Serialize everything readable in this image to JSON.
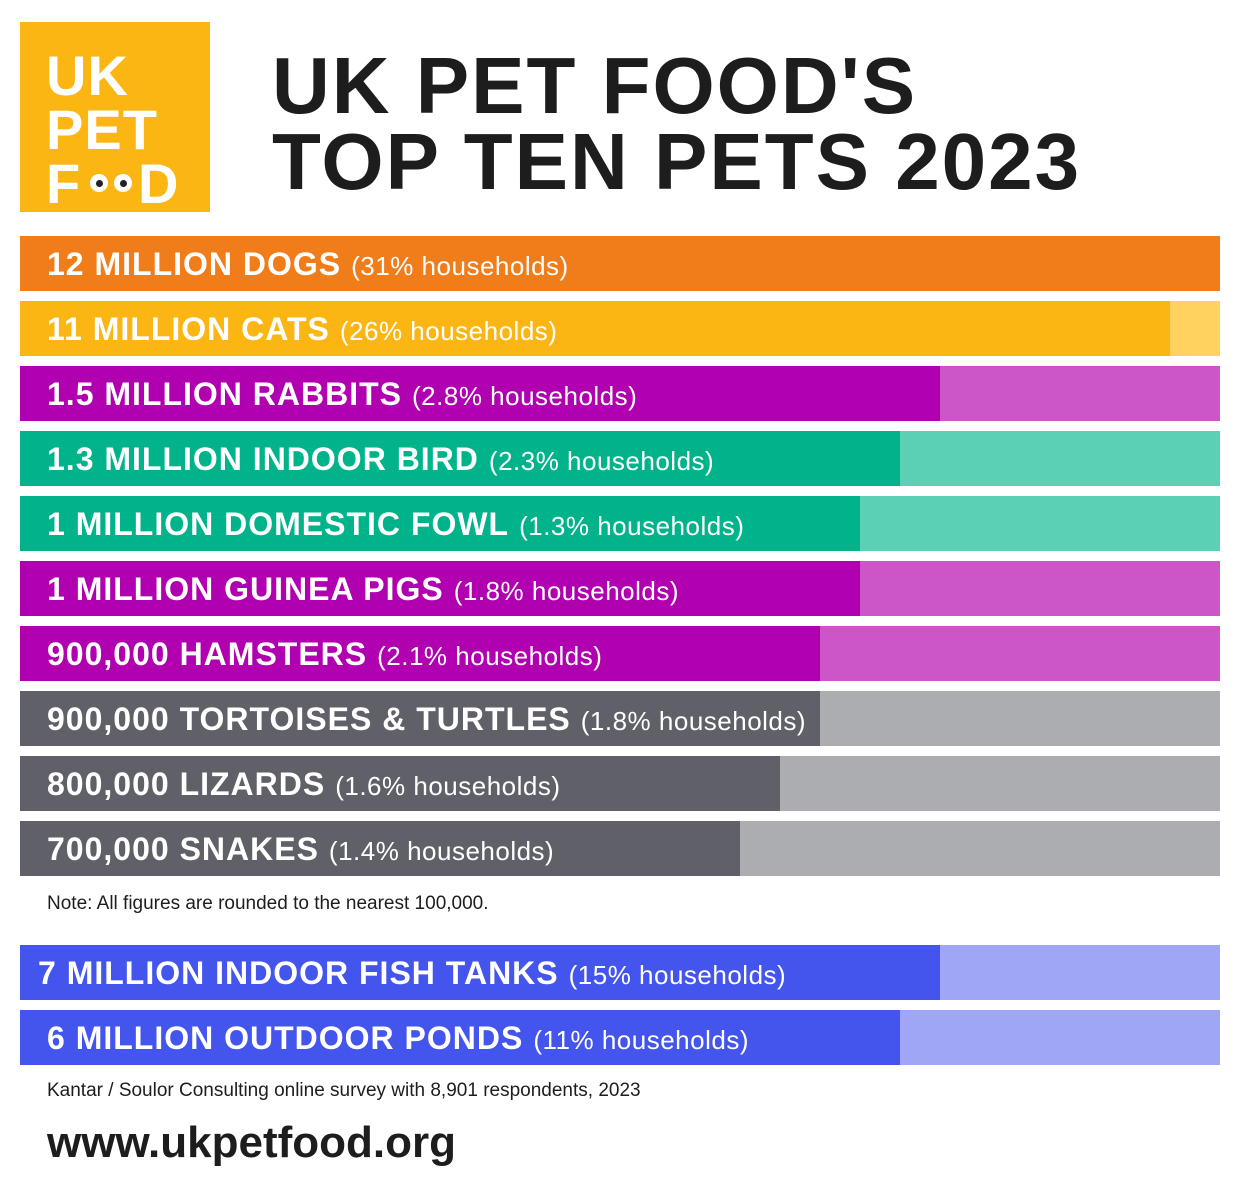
{
  "logo": {
    "line1": "UK",
    "line2": "PET",
    "line3_start": "F",
    "line3_end": "D"
  },
  "title": {
    "line1": "UK PET FOOD'S",
    "line2": "TOP TEN PETS 2023"
  },
  "rows": [
    {
      "label": "12 MILLION DOGS",
      "households": "(31% households)"
    },
    {
      "label": "11 MILLION CATS",
      "households": "(26% households)"
    },
    {
      "label": "1.5 MILLION RABBITS",
      "households": "(2.8% households)"
    },
    {
      "label": "1.3 MILLION INDOOR BIRD",
      "households": "(2.3% households)"
    },
    {
      "label": "1 MILLION DOMESTIC FOWL",
      "households": "(1.3% households)"
    },
    {
      "label": "1 MILLION GUINEA PIGS",
      "households": "(1.8% households)"
    },
    {
      "label": "900,000 HAMSTERS",
      "households": "(2.1% households)"
    },
    {
      "label": "900,000 TORTOISES & TURTLES",
      "households": "(1.8% households)"
    },
    {
      "label": "800,000 LIZARDS",
      "households": "(1.6% households)"
    },
    {
      "label": "700,000 SNAKES",
      "households": "(1.4% households)"
    }
  ],
  "note": "Note: All figures are rounded to the nearest 100,000.",
  "aquatic_rows": [
    {
      "label": "7 MILLION INDOOR FISH TANKS",
      "households": "(15% households)"
    },
    {
      "label": "6 MILLION OUTDOOR PONDS",
      "households": "(11% households)"
    }
  ],
  "source": "Kantar / Soulor Consulting online survey with 8,901 respondents, 2023",
  "url": "www.ukpetfood.org"
}
